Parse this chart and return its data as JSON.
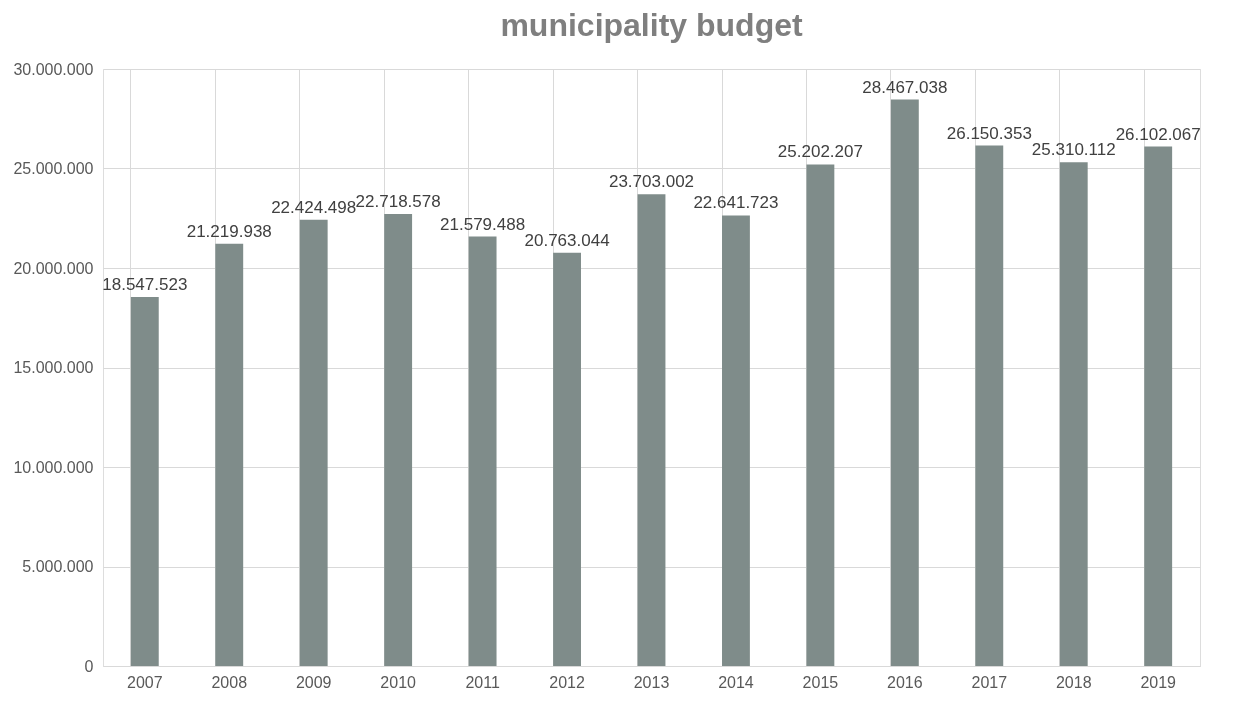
{
  "chart_data": {
    "type": "bar",
    "title": "municipality budget",
    "categories": [
      "2007",
      "2008",
      "2009",
      "2010",
      "2011",
      "2012",
      "2013",
      "2014",
      "2015",
      "2016",
      "2017",
      "2018",
      "2019"
    ],
    "values": [
      18547523,
      21219938,
      22424498,
      22718578,
      21579488,
      20763044,
      23703002,
      22641723,
      25202207,
      28467038,
      26150353,
      25310112,
      26102067
    ],
    "value_labels": [
      "18.547.523",
      "21.219.938",
      "22.424.498",
      "22.718.578",
      "21.579.488",
      "20.763.044",
      "23.703.002",
      "22.641.723",
      "25.202.207",
      "28.467.038",
      "26.150.353",
      "25.310.112",
      "26.102.067"
    ],
    "color": "#7f8c8a",
    "ylim": [
      0,
      30000000
    ],
    "yticks": [
      0,
      {
        "value": 5000000,
        "label": "5.000.000"
      },
      {
        "value": 10000000,
        "label": "10.000.000"
      },
      {
        "value": 15000000,
        "label": "15.000.000"
      },
      {
        "value": 20000000,
        "label": "20.000.000"
      },
      {
        "value": 25000000,
        "label": "25.000.000"
      },
      {
        "value": 30000000,
        "label": "30.000.000"
      }
    ],
    "grid": true
  }
}
